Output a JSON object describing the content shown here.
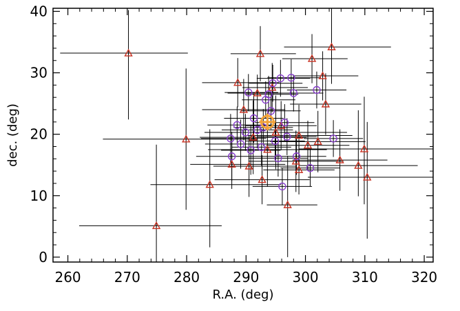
{
  "chart_data": {
    "type": "scatter",
    "xlabel": "R.A. (deg)",
    "ylabel": "dec. (deg)",
    "xlim": [
      257.5,
      321.5
    ],
    "ylim": [
      -0.8,
      40.5
    ],
    "xticks": [
      260,
      270,
      280,
      290,
      300,
      310,
      320
    ],
    "yticks": [
      0,
      10,
      20,
      30,
      40
    ],
    "grid": false,
    "colors": {
      "triangle": "#c83222",
      "circle": "#8a3fcf",
      "errorbar": "#000000",
      "highlight": "#f2a33a"
    },
    "series": [
      {
        "marker": "triangle",
        "points": [
          {
            "x": 270.2,
            "y": 33.2,
            "xerr": [
              11.5,
              10.0
            ],
            "yerr": [
              10.8,
              7.0
            ]
          },
          {
            "x": 274.9,
            "y": 5.1,
            "xerr": [
              13.0,
              11.0
            ],
            "yerr": [
              5.9,
              13.2
            ]
          },
          {
            "x": 279.9,
            "y": 19.2,
            "xerr": [
              14.0,
              12.0
            ],
            "yerr": [
              11.5,
              11.5
            ]
          },
          {
            "x": 283.9,
            "y": 11.8,
            "xerr": [
              10.0,
              12.0
            ],
            "yerr": [
              10.2,
              9.0
            ]
          },
          {
            "x": 287.6,
            "y": 15.1,
            "xerr": [
              7.0,
              9.0
            ],
            "yerr": [
              4.0,
              4.0
            ]
          },
          {
            "x": 288.6,
            "y": 28.4,
            "xerr": [
              6.0,
              7.0
            ],
            "yerr": [
              4.0,
              4.0
            ]
          },
          {
            "x": 289.6,
            "y": 24.0,
            "xerr": [
              7.0,
              7.0
            ],
            "yerr": [
              5.0,
              5.0
            ]
          },
          {
            "x": 290.5,
            "y": 14.8,
            "xerr": [
              6.0,
              8.0
            ],
            "yerr": [
              5.0,
              5.0
            ]
          },
          {
            "x": 291.2,
            "y": 19.5,
            "xerr": [
              9.0,
              9.0
            ],
            "yerr": [
              6.0,
              6.0
            ]
          },
          {
            "x": 291.9,
            "y": 26.7,
            "xerr": [
              5.0,
              6.0
            ],
            "yerr": [
              3.0,
              3.0
            ]
          },
          {
            "x": 292.4,
            "y": 33.1,
            "xerr": [
              5.0,
              6.0
            ],
            "yerr": [
              4.5,
              4.5
            ]
          },
          {
            "x": 292.7,
            "y": 12.6,
            "xerr": [
              8.0,
              8.0
            ],
            "yerr": [
              4.0,
              4.0
            ]
          },
          {
            "x": 293.6,
            "y": 17.5,
            "xerr": [
              10.0,
              10.0
            ],
            "yerr": [
              6.0,
              6.0
            ]
          },
          {
            "x": 294.4,
            "y": 27.6,
            "xerr": [
              5.0,
              6.0
            ],
            "yerr": [
              4.0,
              4.0
            ]
          },
          {
            "x": 295.0,
            "y": 20.3,
            "xerr": [
              12.0,
              12.0
            ],
            "yerr": [
              6.0,
              6.0
            ]
          },
          {
            "x": 295.9,
            "y": 21.4,
            "xerr": [
              6.0,
              6.0
            ],
            "yerr": [
              4.0,
              4.0
            ]
          },
          {
            "x": 297.0,
            "y": 8.5,
            "xerr": [
              3.5,
              5.0
            ],
            "yerr": [
              8.5,
              8.0
            ]
          },
          {
            "x": 298.4,
            "y": 15.6,
            "xerr": [
              8.0,
              8.0
            ],
            "yerr": [
              5.0,
              5.0
            ]
          },
          {
            "x": 298.9,
            "y": 14.2,
            "xerr": [
              6.0,
              6.0
            ],
            "yerr": [
              4.0,
              4.0
            ]
          },
          {
            "x": 298.9,
            "y": 19.8,
            "xerr": [
              9.0,
              9.0
            ],
            "yerr": [
              5.0,
              5.0
            ]
          },
          {
            "x": 300.4,
            "y": 18.2,
            "xerr": [
              7.0,
              7.0
            ],
            "yerr": [
              4.0,
              4.0
            ]
          },
          {
            "x": 301.1,
            "y": 32.3,
            "xerr": [
              5.0,
              6.0
            ],
            "yerr": [
              4.0,
              4.0
            ]
          },
          {
            "x": 302.1,
            "y": 18.8,
            "xerr": [
              8.0,
              8.0
            ],
            "yerr": [
              5.0,
              5.0
            ]
          },
          {
            "x": 302.9,
            "y": 29.5,
            "xerr": [
              5.0,
              6.0
            ],
            "yerr": [
              4.0,
              4.0
            ]
          },
          {
            "x": 303.4,
            "y": 24.9,
            "xerr": [
              6.0,
              6.0
            ],
            "yerr": [
              5.0,
              5.0
            ]
          },
          {
            "x": 304.4,
            "y": 34.2,
            "xerr": [
              8.0,
              10.0
            ],
            "yerr": [
              6.0,
              7.0
            ]
          },
          {
            "x": 305.8,
            "y": 15.8,
            "xerr": [
              8.0,
              8.0
            ],
            "yerr": [
              5.0,
              5.0
            ]
          },
          {
            "x": 308.9,
            "y": 14.9,
            "xerr": [
              10.0,
              10.0
            ],
            "yerr": [
              5.0,
              9.0
            ]
          },
          {
            "x": 309.9,
            "y": 17.6,
            "xerr": [
              11.0,
              12.0
            ],
            "yerr": [
              9.0,
              8.5
            ]
          },
          {
            "x": 310.4,
            "y": 13.0,
            "xerr": [
              10.0,
              12.0
            ],
            "yerr": [
              10.0,
              9.0
            ]
          }
        ]
      },
      {
        "marker": "circle",
        "points": [
          {
            "x": 287.4,
            "y": 19.3,
            "xerr": [
              5.0,
              6.0
            ],
            "yerr": [
              4.0,
              4.0
            ]
          },
          {
            "x": 287.6,
            "y": 16.4,
            "xerr": [
              6.0,
              6.0
            ],
            "yerr": [
              4.0,
              4.0
            ]
          },
          {
            "x": 288.5,
            "y": 21.5,
            "xerr": [
              5.0,
              6.0
            ],
            "yerr": [
              3.0,
              3.0
            ]
          },
          {
            "x": 289.1,
            "y": 18.4,
            "xerr": [
              6.0,
              6.0
            ],
            "yerr": [
              4.0,
              4.0
            ]
          },
          {
            "x": 289.9,
            "y": 20.3,
            "xerr": [
              5.0,
              5.0
            ],
            "yerr": [
              3.0,
              3.0
            ]
          },
          {
            "x": 290.4,
            "y": 26.8,
            "xerr": [
              4.0,
              5.0
            ],
            "yerr": [
              3.0,
              3.0
            ]
          },
          {
            "x": 290.8,
            "y": 17.4,
            "xerr": [
              5.0,
              5.0
            ],
            "yerr": [
              4.0,
              4.0
            ]
          },
          {
            "x": 291.3,
            "y": 22.6,
            "xerr": [
              5.0,
              5.0
            ],
            "yerr": [
              4.0,
              4.0
            ]
          },
          {
            "x": 291.9,
            "y": 20.7,
            "xerr": [
              6.0,
              6.0
            ],
            "yerr": [
              3.0,
              3.0
            ]
          },
          {
            "x": 292.6,
            "y": 17.9,
            "xerr": [
              5.0,
              5.0
            ],
            "yerr": [
              3.0,
              3.0
            ]
          },
          {
            "x": 292.9,
            "y": 21.1,
            "xerr": [
              5.0,
              5.0
            ],
            "yerr": [
              3.0,
              3.0
            ]
          },
          {
            "x": 293.3,
            "y": 25.6,
            "xerr": [
              4.0,
              5.0
            ],
            "yerr": [
              3.0,
              3.0
            ]
          },
          {
            "x": 293.8,
            "y": 26.5,
            "xerr": [
              4.0,
              5.0
            ],
            "yerr": [
              3.0,
              3.0
            ]
          },
          {
            "x": 294.2,
            "y": 23.8,
            "xerr": [
              5.0,
              5.0
            ],
            "yerr": [
              3.0,
              3.0
            ]
          },
          {
            "x": 294.5,
            "y": 28.3,
            "xerr": [
              4.0,
              5.0
            ],
            "yerr": [
              3.0,
              3.0
            ]
          },
          {
            "x": 294.9,
            "y": 18.9,
            "xerr": [
              5.0,
              5.0
            ],
            "yerr": [
              3.0,
              3.0
            ]
          },
          {
            "x": 295.4,
            "y": 16.1,
            "xerr": [
              5.0,
              5.0
            ],
            "yerr": [
              3.0,
              3.0
            ]
          },
          {
            "x": 295.8,
            "y": 29.1,
            "xerr": [
              4.0,
              5.0
            ],
            "yerr": [
              3.0,
              3.0
            ]
          },
          {
            "x": 296.1,
            "y": 11.5,
            "xerr": [
              5.0,
              5.0
            ],
            "yerr": [
              3.0,
              3.0
            ]
          },
          {
            "x": 296.5,
            "y": 21.9,
            "xerr": [
              5.0,
              5.0
            ],
            "yerr": [
              3.0,
              3.0
            ]
          },
          {
            "x": 296.9,
            "y": 19.6,
            "xerr": [
              5.0,
              5.0
            ],
            "yerr": [
              3.0,
              3.0
            ]
          },
          {
            "x": 297.6,
            "y": 29.2,
            "xerr": [
              4.0,
              5.0
            ],
            "yerr": [
              3.0,
              3.0
            ]
          },
          {
            "x": 298.0,
            "y": 26.7,
            "xerr": [
              4.0,
              5.0
            ],
            "yerr": [
              3.0,
              3.0
            ]
          },
          {
            "x": 298.5,
            "y": 16.4,
            "xerr": [
              5.0,
              5.0
            ],
            "yerr": [
              3.0,
              3.0
            ]
          },
          {
            "x": 300.8,
            "y": 14.5,
            "xerr": [
              5.0,
              5.0
            ],
            "yerr": [
              3.0,
              3.0
            ]
          },
          {
            "x": 301.9,
            "y": 27.2,
            "xerr": [
              5.0,
              5.0
            ],
            "yerr": [
              3.0,
              3.0
            ]
          },
          {
            "x": 304.7,
            "y": 19.3,
            "xerr": [
              5.0,
              5.0
            ],
            "yerr": [
              3.0,
              3.0
            ]
          }
        ]
      },
      {
        "marker": "circle-cross",
        "points": [
          {
            "x": 293.6,
            "y": 22.0,
            "xerr": [
              0,
              0
            ],
            "yerr": [
              0,
              0
            ]
          }
        ]
      }
    ]
  }
}
